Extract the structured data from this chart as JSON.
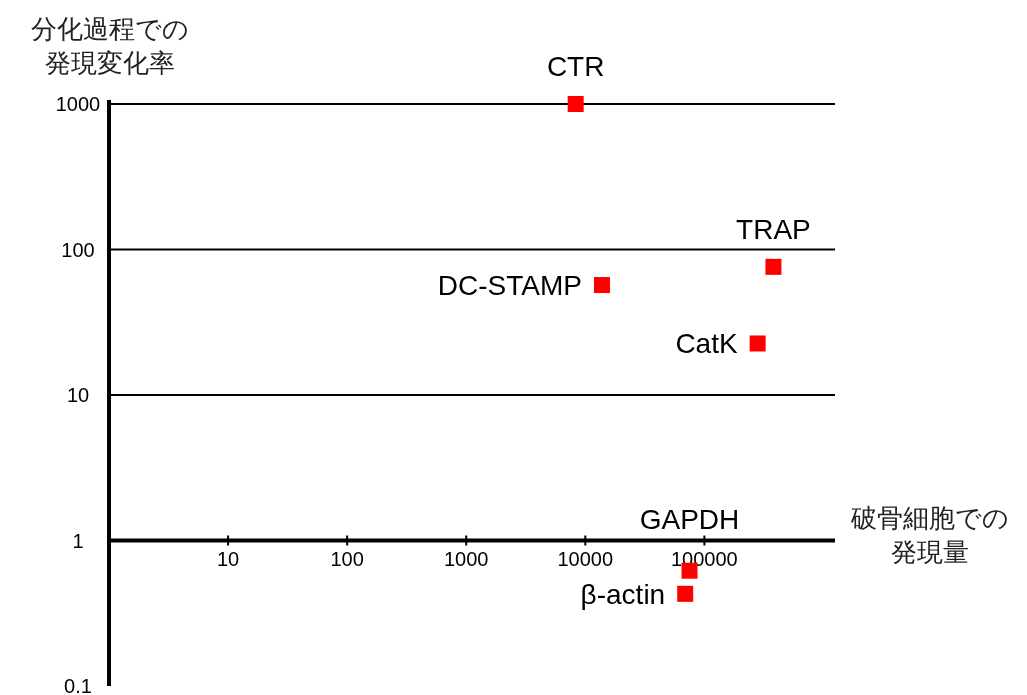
{
  "chart_data": {
    "type": "scatter",
    "xlabel": "破骨細胞での発現量",
    "ylabel": "分化過程での発現変化率",
    "log": "xy",
    "grid": "y",
    "marker": "square",
    "xlim": [
      1,
      1250000
    ],
    "xticks": [
      10,
      100,
      1000,
      10000,
      100000
    ],
    "ylim": [
      0.1,
      1000
    ],
    "yticks": [
      0.1,
      1,
      10,
      100,
      1000
    ],
    "series": [
      {
        "color": "#ff0000",
        "x": [
          8300,
          13800,
          380000,
          280000,
          75000,
          69000
        ],
        "values": [
          1000,
          57,
          76,
          22.6,
          0.62,
          0.43
        ]
      }
    ],
    "annotations": [
      {
        "text": "CTR",
        "x": 8300,
        "y": 1000
      },
      {
        "text": "DC-STAMP",
        "x": 13800,
        "y": 57
      },
      {
        "text": "TRAP",
        "x": 380000,
        "y": 76
      },
      {
        "text": "CatK",
        "x": 280000,
        "y": 22.6
      },
      {
        "text": "GAPDH",
        "x": 75000,
        "y": 0.62
      },
      {
        "text": "β-actin",
        "x": 69000,
        "y": 0.43
      }
    ]
  }
}
